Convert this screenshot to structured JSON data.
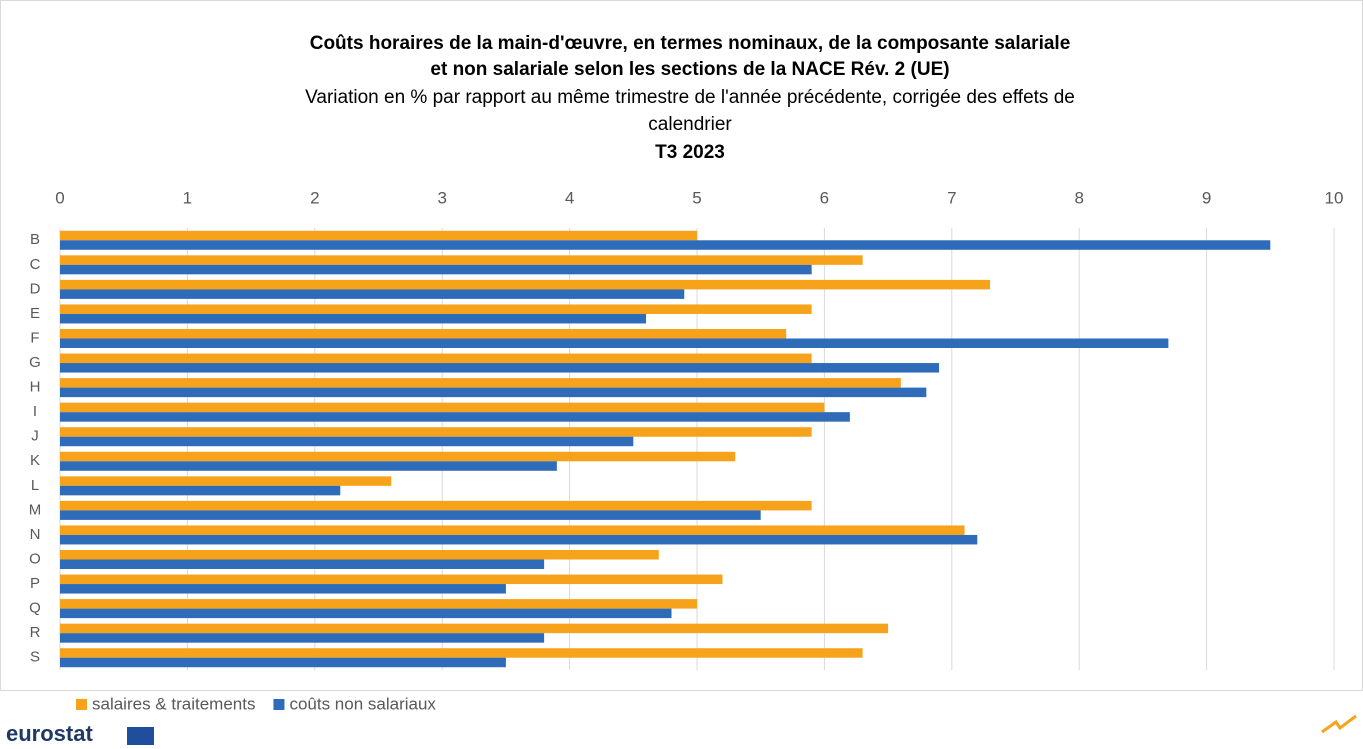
{
  "chart_data": {
    "type": "bar",
    "orientation": "horizontal",
    "title": [
      "Coûts horaires de la main-d'œuvre, en termes nominaux, de la composante salariale",
      "et non salariale selon les sections de la NACE Rév. 2 (UE)"
    ],
    "subtitle": [
      "Variation en % par rapport au même trimestre de l'année précédente, corrigée des effets de",
      "calendrier"
    ],
    "period": "T3 2023",
    "categories": [
      "B",
      "C",
      "D",
      "E",
      "F",
      "G",
      "H",
      "I",
      "J",
      "K",
      "L",
      "M",
      "N",
      "O",
      "P",
      "Q",
      "R",
      "S"
    ],
    "series": [
      {
        "name": "salaires & traitements",
        "color": "#f7a21b",
        "values": [
          5.0,
          6.3,
          7.3,
          5.9,
          5.7,
          5.9,
          6.6,
          6.0,
          5.9,
          5.3,
          2.6,
          5.9,
          7.1,
          4.7,
          5.2,
          5.0,
          6.5,
          6.3
        ]
      },
      {
        "name": "coûts non salariaux",
        "color": "#2e6bb8",
        "values": [
          9.5,
          5.9,
          4.9,
          4.6,
          8.7,
          6.9,
          6.8,
          6.2,
          4.5,
          3.9,
          2.2,
          5.5,
          7.2,
          3.8,
          3.5,
          4.8,
          3.8,
          3.5
        ]
      }
    ],
    "xlim": [
      0,
      10
    ],
    "xticks": [
      0,
      1,
      2,
      3,
      4,
      5,
      6,
      7,
      8,
      9,
      10
    ],
    "grid": true,
    "legend": "bottom-left",
    "brand": "eurostat"
  }
}
